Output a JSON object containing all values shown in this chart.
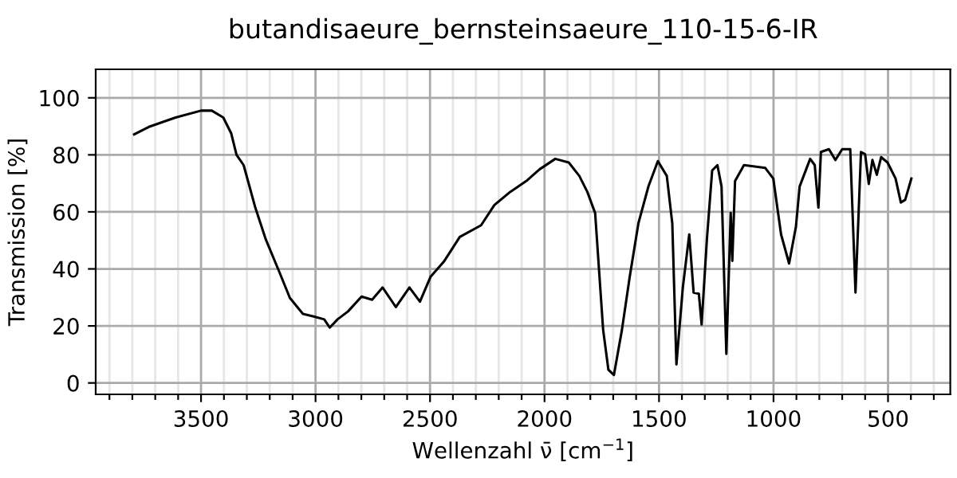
{
  "chart_data": {
    "type": "line",
    "title": "butandisaeure_bernsteinsaeure_110-15-6-IR",
    "xlabel": "Wellenzahl ν̄ [cm$^{−1}$]",
    "ylabel": "Transmission [%]",
    "x": [
      3792,
      3728,
      3611,
      3500,
      3453,
      3403,
      3368,
      3345,
      3314,
      3263,
      3217,
      3159,
      3112,
      3055,
      3008,
      2962,
      2938,
      2904,
      2858,
      2799,
      2753,
      2707,
      2649,
      2590,
      2544,
      2498,
      2440,
      2370,
      2277,
      2219,
      2150,
      2080,
      2022,
      1953,
      1894,
      1848,
      1813,
      1779,
      1744,
      1721,
      1697,
      1662,
      1628,
      1590,
      1546,
      1505,
      1466,
      1442,
      1424,
      1396,
      1368,
      1349,
      1326,
      1314,
      1291,
      1268,
      1245,
      1227,
      1206,
      1187,
      1180,
      1168,
      1129,
      1036,
      1001,
      967,
      932,
      902,
      886,
      840,
      820,
      804,
      793,
      758,
      730,
      700,
      665,
      642,
      618,
      600,
      584,
      568,
      549,
      530,
      502,
      467,
      444,
      425,
      398
    ],
    "series": [
      {
        "color": "#000000",
        "values": [
          87.2,
          89.8,
          93.1,
          95.5,
          95.5,
          93.1,
          87.5,
          80,
          76.4,
          61.5,
          50.3,
          39.1,
          29.8,
          24.2,
          23.3,
          22.3,
          19.4,
          22.3,
          25.1,
          30.3,
          29.2,
          33.5,
          26.6,
          33.5,
          28.5,
          37.2,
          42.5,
          51.2,
          55.3,
          62.4,
          67,
          70.8,
          74.9,
          78.6,
          77.3,
          72.6,
          67,
          59.6,
          18.6,
          4.6,
          2.8,
          18.6,
          37.2,
          56,
          69,
          77.8,
          72.6,
          55.9,
          6.5,
          33.5,
          52.1,
          31.7,
          31.3,
          20.5,
          50.3,
          74.5,
          76.4,
          68.9,
          10.2,
          59.6,
          42.8,
          70.8,
          76.4,
          75.4,
          71.7,
          52.1,
          41.9,
          54.9,
          68.9,
          78.6,
          76.4,
          61.5,
          81,
          82,
          78.2,
          82,
          82,
          31.7,
          81,
          80.2,
          69.8,
          78.2,
          73,
          79.2,
          77.3,
          71.7,
          63.3,
          64.2,
          71.7
        ]
      }
    ],
    "xlim": [
      3960,
      228
    ],
    "ylim": [
      -4,
      110
    ],
    "xticks": [
      {
        "value": 3900,
        "label": null
      },
      {
        "value": 3800,
        "label": null
      },
      {
        "value": 3700,
        "label": null
      },
      {
        "value": 3600,
        "label": null
      },
      3500,
      {
        "value": 3400,
        "label": null
      },
      {
        "value": 3300,
        "label": null
      },
      {
        "value": 3200,
        "label": null
      },
      {
        "value": 3100,
        "label": null
      },
      3000,
      {
        "value": 2900,
        "label": null
      },
      {
        "value": 2800,
        "label": null
      },
      {
        "value": 2700,
        "label": null
      },
      {
        "value": 2600,
        "label": null
      },
      2500,
      {
        "value": 2400,
        "label": null
      },
      {
        "value": 2300,
        "label": null
      },
      {
        "value": 2200,
        "label": null
      },
      {
        "value": 2100,
        "label": null
      },
      2000,
      {
        "value": 1900,
        "label": null
      },
      {
        "value": 1800,
        "label": null
      },
      {
        "value": 1700,
        "label": null
      },
      {
        "value": 1600,
        "label": null
      },
      1500,
      {
        "value": 1400,
        "label": null
      },
      {
        "value": 1300,
        "label": null
      },
      {
        "value": 1200,
        "label": null
      },
      {
        "value": 1100,
        "label": null
      },
      1000,
      {
        "value": 900,
        "label": null
      },
      {
        "value": 800,
        "label": null
      },
      {
        "value": 700,
        "label": null
      },
      {
        "value": 600,
        "label": null
      },
      500,
      {
        "value": 400,
        "label": null
      },
      {
        "value": 300,
        "label": null
      }
    ],
    "yticks": [
      0,
      20,
      40,
      60,
      80,
      100
    ],
    "grid": true,
    "marker": "none",
    "line_style": "solid"
  }
}
